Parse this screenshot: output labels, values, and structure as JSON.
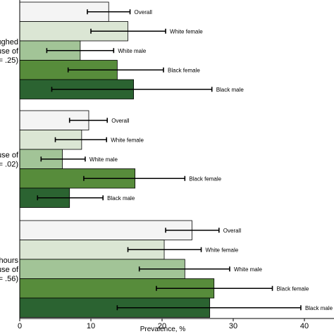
{
  "chart_data": {
    "type": "bar",
    "orientation": "horizontal",
    "xlabel": "Prevalence, %",
    "xlim": [
      0,
      45
    ],
    "xticks": [
      0,
      10,
      20,
      30,
      40
    ],
    "grid": false,
    "groups": [
      {
        "label_lines": [
          "ughed",
          "use of",
          "= .25)"
        ],
        "bars": [
          {
            "label": "Overall",
            "value": 12.5,
            "err_low": 9.5,
            "err_high": 15.5,
            "color": "#f4f4f4"
          },
          {
            "label": "White female",
            "value": 15.2,
            "err_low": 10.0,
            "err_high": 20.5,
            "color": "#dbe6d4"
          },
          {
            "label": "White male",
            "value": 8.5,
            "err_low": 3.8,
            "err_high": 13.2,
            "color": "#a2c497"
          },
          {
            "label": "Black female",
            "value": 13.7,
            "err_low": 6.8,
            "err_high": 20.2,
            "color": "#578c3b"
          },
          {
            "label": "Black male",
            "value": 16.0,
            "err_low": 4.5,
            "err_high": 27.0,
            "color": "#2b6331"
          }
        ]
      },
      {
        "label_lines": [
          "use of",
          "= .02)"
        ],
        "bars": [
          {
            "label": "Overall",
            "value": 9.7,
            "err_low": 7.0,
            "err_high": 12.3,
            "color": "#f4f4f4"
          },
          {
            "label": "White female",
            "value": 8.7,
            "err_low": 5.0,
            "err_high": 12.2,
            "color": "#dbe6d4"
          },
          {
            "label": "White male",
            "value": 6.0,
            "err_low": 3.0,
            "err_high": 9.2,
            "color": "#a2c497"
          },
          {
            "label": "Black female",
            "value": 16.2,
            "err_low": 9.0,
            "err_high": 23.2,
            "color": "#578c3b"
          },
          {
            "label": "Black male",
            "value": 7.0,
            "err_low": 2.5,
            "err_high": 11.7,
            "color": "#2b6331"
          }
        ]
      },
      {
        "label_lines": [
          "hours",
          "use of",
          "= .56)"
        ],
        "bars": [
          {
            "label": "Overall",
            "value": 24.2,
            "err_low": 20.5,
            "err_high": 28.0,
            "color": "#f4f4f4"
          },
          {
            "label": "White female",
            "value": 20.3,
            "err_low": 15.2,
            "err_high": 25.5,
            "color": "#dbe6d4"
          },
          {
            "label": "White male",
            "value": 23.2,
            "err_low": 16.8,
            "err_high": 29.5,
            "color": "#a2c497"
          },
          {
            "label": "Black female",
            "value": 27.3,
            "err_low": 19.2,
            "err_high": 35.5,
            "color": "#578c3b"
          },
          {
            "label": "Black male",
            "value": 26.7,
            "err_low": 13.7,
            "err_high": 39.5,
            "color": "#2b6331"
          }
        ]
      }
    ]
  }
}
